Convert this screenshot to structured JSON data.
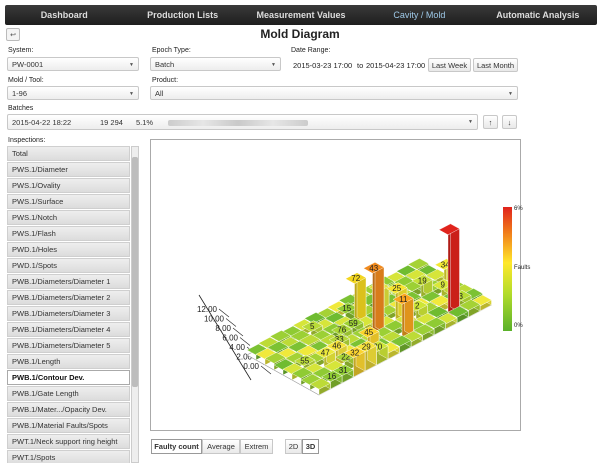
{
  "nav": {
    "items": [
      {
        "label": "Dashboard",
        "active": false
      },
      {
        "label": "Production Lists",
        "active": false
      },
      {
        "label": "Measurement Values",
        "active": false
      },
      {
        "label": "Cavity / Mold",
        "active": true
      },
      {
        "label": "Automatic Analysis",
        "active": false
      }
    ]
  },
  "page": {
    "title": "Mold Diagram",
    "back_icon": "back-arrow-icon"
  },
  "filters": {
    "system_label": "System:",
    "system_value": "PW-0001",
    "epoch_label": "Epoch Type:",
    "epoch_value": "Batch",
    "date_label": "Date Range:",
    "date_from": "2015-03-23 17:00",
    "date_to_sep": "to",
    "date_to": "2015-04-23 17:00",
    "last_week": "Last Week",
    "last_month": "Last Month",
    "mold_label": "Mold / Tool:",
    "mold_value": "1-96",
    "product_label": "Product:",
    "product_value": "All",
    "batches_label": "Batches",
    "batch_date": "2015-04-22 18:22",
    "batch_count": "19 294",
    "batch_percent": "5.1%",
    "up_icon": "arrow-up-icon",
    "down_icon": "arrow-down-icon"
  },
  "inspections": {
    "label": "Inspections:",
    "items": [
      {
        "label": "Total",
        "active": false
      },
      {
        "label": "PWS.1/Diameter",
        "active": false
      },
      {
        "label": "PWS.1/Ovality",
        "active": false
      },
      {
        "label": "PWS.1/Surface",
        "active": false
      },
      {
        "label": "PWS.1/Notch",
        "active": false
      },
      {
        "label": "PWS.1/Flash",
        "active": false
      },
      {
        "label": "PWD.1/Holes",
        "active": false
      },
      {
        "label": "PWD.1/Spots",
        "active": false
      },
      {
        "label": "PWB.1/Diameters/Diameter 1",
        "active": false
      },
      {
        "label": "PWB.1/Diameters/Diameter 2",
        "active": false
      },
      {
        "label": "PWB.1/Diameters/Diameter 3",
        "active": false
      },
      {
        "label": "PWB.1/Diameters/Diameter 4",
        "active": false
      },
      {
        "label": "PWB.1/Diameters/Diameter 5",
        "active": false
      },
      {
        "label": "PWB.1/Length",
        "active": false
      },
      {
        "label": "PWB.1/Contour Dev.",
        "active": true
      },
      {
        "label": "PWB.1/Gate Length",
        "active": false
      },
      {
        "label": "PWB.1/Mater.../Opacity Dev.",
        "active": false
      },
      {
        "label": "PWB.1/Material Faults/Spots",
        "active": false
      },
      {
        "label": "PWT.1/Neck support ring height",
        "active": false
      },
      {
        "label": "PWT.1/Spots",
        "active": false
      }
    ]
  },
  "chart": {
    "z_ticks": [
      "12.00",
      "10.00",
      "8.00",
      "6.00",
      "4.00",
      "2.00",
      "0.00"
    ],
    "legend_top": "6%",
    "legend_mid": "Faults",
    "legend_bottom": "0%",
    "bars": [
      {
        "label": "72",
        "color": "#f3d61f",
        "h": 6.1
      },
      {
        "label": "43",
        "color": "#f08a1e",
        "h": 9.2
      },
      {
        "label": "25",
        "color": "#f6e52c",
        "h": 4.3
      },
      {
        "label": "11",
        "color": "#f9a41e",
        "h": 5.1
      },
      {
        "label": "34",
        "color": "#f3e832",
        "h": 2.6
      },
      {
        "label": "9",
        "color": "#d9e838",
        "h": 1.2
      },
      {
        "label": "19",
        "color": "#c6e138",
        "h": 2.0
      },
      {
        "label": "3",
        "color": "#b6dc34",
        "h": 1.0
      },
      {
        "label": "50",
        "color": "#e0e33a",
        "h": 3.0
      },
      {
        "label": "2",
        "color": "#cde636",
        "h": 1.5
      },
      {
        "label": "76",
        "color": "#a9d535",
        "h": 0.9
      },
      {
        "label": "59",
        "color": "#9dd134",
        "h": 1.0
      },
      {
        "label": "33",
        "color": "#b4d737",
        "h": 1.1
      },
      {
        "label": "15",
        "color": "#92cd33",
        "h": 0.8
      },
      {
        "label": "46",
        "color": "#f5e43a",
        "h": 1.8
      },
      {
        "label": "45",
        "color": "#fbd42a",
        "h": 2.8
      },
      {
        "label": "47",
        "color": "#ecea3a",
        "h": 1.7
      },
      {
        "label": "29",
        "color": "#f6e33a",
        "h": 2.3
      },
      {
        "label": "55",
        "color": "#b9da38",
        "h": 0.6
      },
      {
        "label": "32",
        "color": "#fbd530",
        "h": 2.3
      },
      {
        "label": "5",
        "color": "#b8da37",
        "h": 0.8
      },
      {
        "label": "31",
        "color": "#90cd33",
        "h": 0.5
      },
      {
        "label": "22",
        "color": "#a8d436",
        "h": 0.9
      },
      {
        "label": "20",
        "color": "#cde536",
        "h": 1.4
      },
      {
        "label": "16",
        "color": "#8fcb33",
        "h": 0.5
      },
      {
        "label": "",
        "color": "#e0231c",
        "h": 12.0
      }
    ]
  },
  "bottom": {
    "faulty_count": "Faulty count",
    "average": "Average",
    "extrem": "Extrem",
    "view_2d": "2D",
    "view_3d": "3D"
  }
}
